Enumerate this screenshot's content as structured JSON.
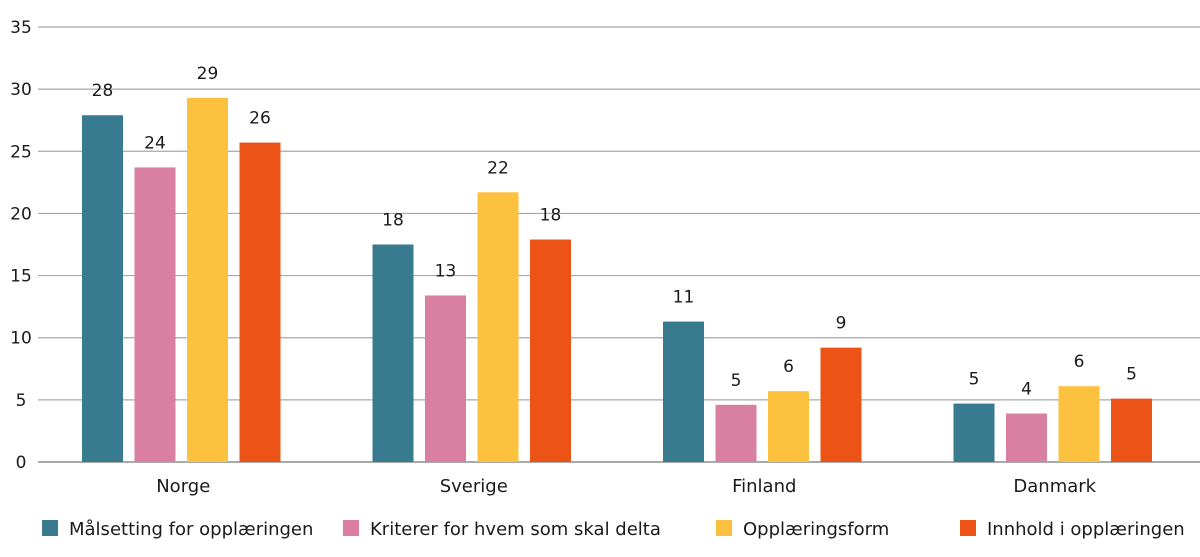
{
  "chart_data": {
    "type": "bar",
    "title": "",
    "xlabel": "",
    "ylabel": "",
    "ylim": [
      0,
      35
    ],
    "yticks": [
      0,
      5,
      10,
      15,
      20,
      25,
      30,
      35
    ],
    "grid": true,
    "legend_position": "bottom",
    "categories": [
      "Norge",
      "Sverige",
      "Finland",
      "Danmark"
    ],
    "series": [
      {
        "name": "Målsetting for opplæringen",
        "color": "#387a8e",
        "values": [
          27.9,
          17.5,
          11.3,
          4.7
        ],
        "labels": [
          "28",
          "18",
          "11",
          "5"
        ]
      },
      {
        "name": "Kriterer for hvem som skal delta",
        "color": "#d87fa2",
        "values": [
          23.7,
          13.4,
          4.6,
          3.9
        ],
        "labels": [
          "24",
          "13",
          "5",
          "4"
        ]
      },
      {
        "name": "Opplæringsform",
        "color": "#fcc23f",
        "values": [
          29.3,
          21.7,
          5.7,
          6.1
        ],
        "labels": [
          "29",
          "22",
          "6",
          "6"
        ]
      },
      {
        "name": "Innhold i opplæringen",
        "color": "#eb5416",
        "values": [
          25.7,
          17.9,
          9.2,
          5.1
        ],
        "labels": [
          "26",
          "18",
          "9",
          "5"
        ]
      }
    ]
  }
}
